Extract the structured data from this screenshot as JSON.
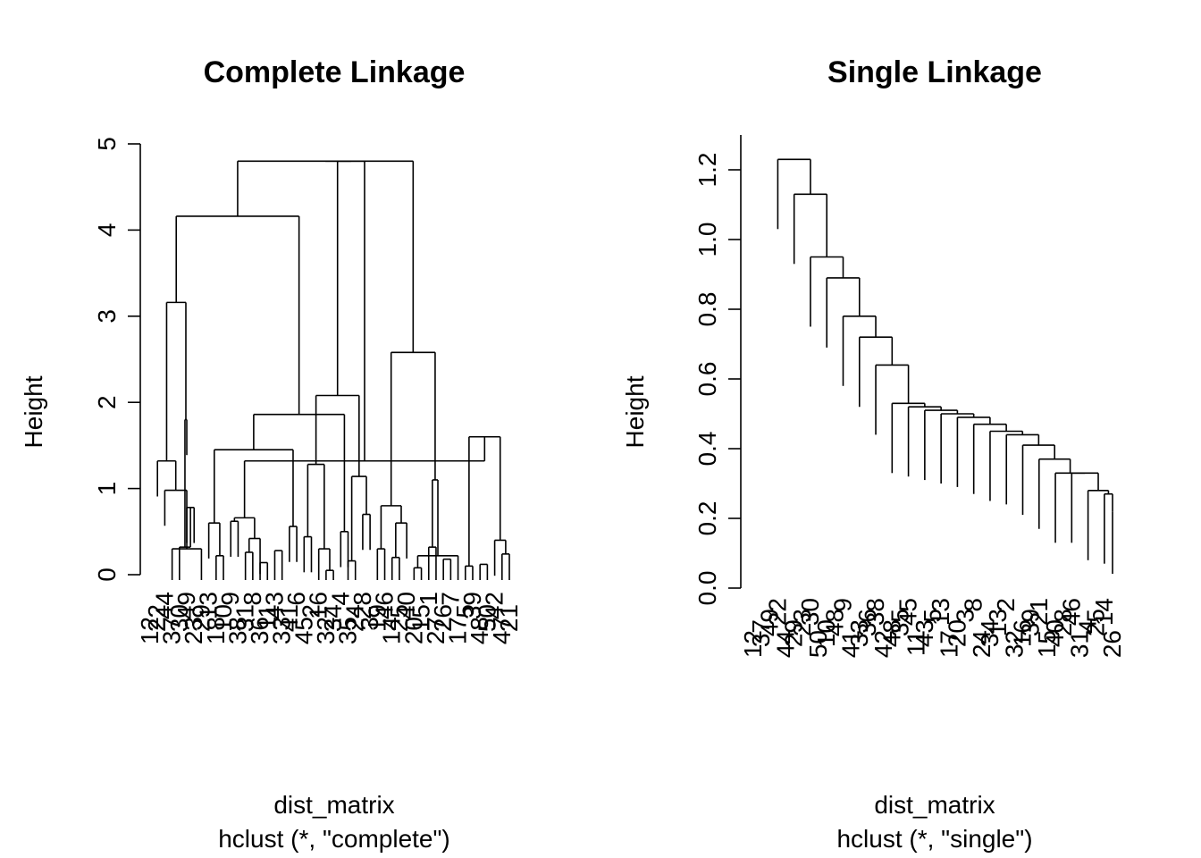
{
  "chart_data": [
    {
      "type": "dendrogram",
      "title": "Complete Linkage",
      "xlabel": "dist_matrix",
      "sublabel": "hclust (*, \"complete\")",
      "ylabel": "Height",
      "ylim": [
        0,
        5
      ],
      "yticks": [
        "0",
        "1",
        "2",
        "3",
        "4",
        "5"
      ],
      "leaves": [
        "12",
        "22",
        "44",
        "37",
        "30",
        "49",
        "23",
        "29",
        "13",
        "18",
        "10",
        "9",
        "38",
        "31",
        "8",
        "36",
        "11",
        "43",
        "33",
        "41",
        "6",
        "45",
        "2",
        "16",
        "32",
        "34",
        "4",
        "35",
        "24",
        "28",
        "3",
        "19",
        "46",
        "14",
        "25",
        "40",
        "20",
        "15",
        "1",
        "27",
        "26",
        "7",
        "17",
        "5",
        "39",
        "48",
        "50",
        "42",
        "47",
        "21"
      ],
      "merges": [
        [
          -4,
          -8
        ],
        [
          -10,
          -11
        ],
        [
          -16,
          -17
        ],
        [
          -18,
          -19
        ],
        [
          -25,
          -26
        ],
        [
          -28,
          -29
        ],
        [
          -34,
          -35
        ],
        [
          -37,
          -38
        ],
        [
          -41,
          -42
        ],
        [
          -44,
          -45
        ],
        [
          -46,
          -47
        ],
        [
          -49,
          -50
        ],
        [
          -3,
          1
        ],
        [
          -6,
          -7
        ],
        [
          -5,
          14
        ],
        [
          -9,
          2
        ],
        [
          -12,
          -13
        ],
        [
          -14,
          -15
        ],
        [
          18,
          -16
        ],
        [
          -20,
          -21
        ],
        [
          -22,
          -23
        ],
        [
          -24,
          5
        ],
        [
          -27,
          -28
        ],
        [
          -30,
          -31
        ],
        [
          -32,
          -33
        ],
        [
          -36,
          7
        ],
        [
          -39,
          -40
        ],
        [
          -43,
          8
        ],
        [
          -48,
          12
        ],
        [
          -2,
          13
        ],
        [
          15,
          -6
        ],
        [
          16,
          20
        ],
        [
          17,
          19
        ],
        [
          21,
          22
        ],
        [
          24,
          6
        ],
        [
          25,
          26
        ],
        [
          27,
          28
        ],
        [
          29,
          10
        ],
        [
          30,
          31
        ],
        [
          32,
          23
        ],
        [
          33,
          38
        ],
        [
          34,
          35
        ],
        [
          36,
          37
        ],
        [
          39,
          40
        ],
        [
          41,
          42
        ],
        [
          43,
          44
        ],
        [
          45,
          46
        ],
        [
          47,
          48
        ],
        [
          49,
          30
        ],
        [
          50,
          47
        ]
      ],
      "heights": [
        0.3,
        0.22,
        0.14,
        0.28,
        0.05,
        0.16,
        0.2,
        0.08,
        0.18,
        0.1,
        0.12,
        0.24,
        0.98,
        0.78,
        0.32,
        0.6,
        0.62,
        0.26,
        0.42,
        0.56,
        0.44,
        0.3,
        0.5,
        0.7,
        0.3,
        0.6,
        0.32,
        0.22,
        0.4,
        1.32,
        1.8,
        1.45,
        0.66,
        1.28,
        1.14,
        0.8,
        1.1,
        1.6,
        3.16,
        1.86,
        1.32,
        2.08,
        2.58,
        4.16,
        4.8,
        4.8,
        4.8,
        4.8,
        4.8,
        4.8
      ]
    },
    {
      "type": "dendrogram",
      "title": "Single Linkage",
      "xlabel": "dist_matrix",
      "sublabel": "hclust (*, \"single\")",
      "ylabel": "Height",
      "ylim": [
        0,
        1.2
      ],
      "yticks": [
        "0.0",
        "0.2",
        "0.4",
        "0.6",
        "0.8",
        "1.0",
        "1.2"
      ],
      "leaves": [
        "12",
        "37",
        "49",
        "22",
        "44",
        "29",
        "23",
        "30",
        "50",
        "10",
        "48",
        "9",
        "41",
        "33",
        "36",
        "38",
        "42",
        "48",
        "35",
        "45",
        "11",
        "43",
        "5",
        "13",
        "17",
        "20",
        "3",
        "8",
        "24",
        "34",
        "13",
        "2",
        "32",
        "16",
        "39",
        "21",
        "15",
        "40",
        "28",
        "46",
        "31",
        "4",
        "25",
        "14",
        "26"
      ]
    }
  ]
}
